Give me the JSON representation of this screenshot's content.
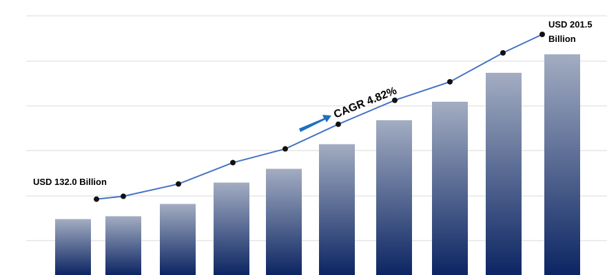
{
  "chart_data": {
    "type": "bar-line",
    "categories": [
      null,
      null,
      null,
      null,
      null,
      null,
      null,
      null,
      null,
      null
    ],
    "values": [
      132.0,
      133.2,
      138.4,
      147.4,
      153.2,
      163.6,
      173.7,
      181.5,
      193.7,
      201.5
    ],
    "bar_color_top": "#a3adc2",
    "bar_color_bottom": "#0c2563",
    "line_color": "#4472c4",
    "ylim": [
      100,
      216
    ],
    "annotations": {
      "start": "USD 132.0 Billion",
      "end": [
        "USD 201.5",
        "Billion"
      ],
      "cagr": "CAGR 4.82%"
    }
  }
}
